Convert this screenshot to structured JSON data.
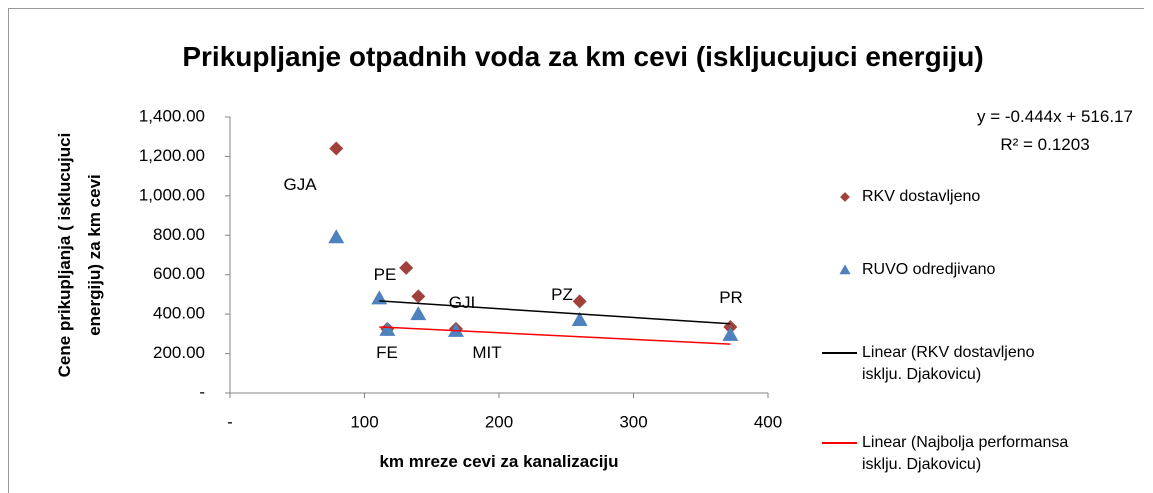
{
  "chart_data": {
    "type": "scatter",
    "title": "Prikupljanje otpadnih voda za km cevi (iskljucujuci energiju)",
    "xlabel": "km mreze cevi za kanalizaciju",
    "ylabel": "Cene prikupljanja ( isklucujuci energiju) za km cevi",
    "xlim": [
      0,
      400
    ],
    "ylim": [
      0,
      1400
    ],
    "xticks": [
      {
        "value": 0,
        "label": "-"
      },
      100,
      200,
      300,
      400
    ],
    "yticks": [
      {
        "value": 0,
        "label": "-"
      },
      {
        "value": 200,
        "label": "200.00"
      },
      {
        "value": 400,
        "label": "400.00"
      },
      {
        "value": 600,
        "label": "600.00"
      },
      {
        "value": 800,
        "label": "800.00"
      },
      {
        "value": 1000,
        "label": "1,000.00"
      },
      {
        "value": 1200,
        "label": "1,200.00"
      },
      {
        "value": 1400,
        "label": "1,400.00"
      }
    ],
    "grid": false,
    "legend": "right",
    "series": [
      {
        "name": "RKV dostavljeno",
        "color": "#a0413c",
        "marker": "diamond",
        "x": [
          79,
          131,
          140,
          117,
          168,
          260,
          372
        ],
        "values": [
          1240,
          635,
          490,
          325,
          325,
          465,
          335
        ]
      },
      {
        "name": "RUVO odredjivano",
        "color": "#4f81bd",
        "marker": "triangle",
        "x": [
          79,
          111,
          117,
          140,
          168,
          260,
          372
        ],
        "values": [
          790,
          480,
          320,
          400,
          315,
          370,
          295
        ]
      },
      {
        "name": "Linear (RKV dostavljeno isklju. Djakovicu)",
        "color": "#000000",
        "marker": "line",
        "x": [
          111,
          372
        ],
        "values": [
          467,
          351
        ]
      },
      {
        "name": "Linear (Najbolja performansa isklju. Djakovicu)",
        "color": "#ff0000",
        "marker": "line",
        "x": [
          111,
          372
        ],
        "values": [
          335,
          248
        ]
      }
    ],
    "annotations": [
      "GJA",
      "PE",
      "GJI",
      "PZ",
      "PR",
      "FE",
      "MIT",
      "y = -0.444x + 516.17",
      "R² = 0.1203"
    ]
  }
}
